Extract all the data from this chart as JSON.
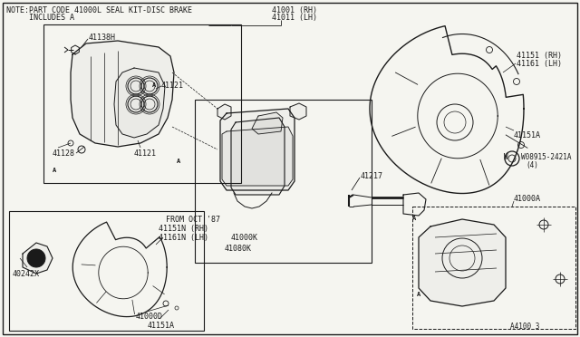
{
  "background_color": "#f5f5f0",
  "line_color": "#1a1a1a",
  "text_color": "#1a1a1a",
  "font_size": 6.0,
  "font_family": "monospace",
  "note_line1": "NOTE:PART CODE 41000L SEAL KIT-DISC BRAKE",
  "note_line2": "     INCLUDES A",
  "label_41001": "41001 (RH)",
  "label_41011": "41011 (LH)",
  "label_41138H": "41138H",
  "label_41121a": "41121",
  "label_41121b": "41121",
  "label_41128": "41128",
  "label_A": "A",
  "label_41217": "41217",
  "label_41000K": "41000K",
  "label_41080K": "41080K",
  "label_41151_RH": "41151 (RH)",
  "label_41161_LH": "41161 (LH)",
  "label_41151A_top": "41151A",
  "label_W08915": "W08915-2421A",
  "label_4": "(4)",
  "label_41000A": "41000A",
  "label_FROM": "FROM OCT.'87",
  "label_41151N_RH": "41151N (RH)",
  "label_41161N_LH": "41161N (LH)",
  "label_40242X": "40242X",
  "label_41000D": "41000D",
  "label_41151A_bot": "41151A",
  "label_diagram": "A4100 3"
}
